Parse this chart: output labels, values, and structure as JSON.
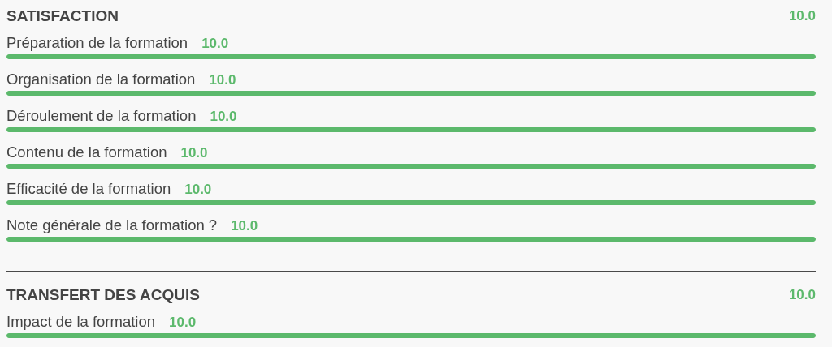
{
  "chart_data": [
    {
      "type": "bar",
      "orientation": "horizontal",
      "title": "SATISFACTION",
      "annotations": [
        "10.0"
      ],
      "categories": [
        "Préparation de la formation",
        "Organisation de la formation",
        "Déroulement de la formation",
        "Contenu de la formation",
        "Efficacité de la formation",
        "Note générale de la formation ?"
      ],
      "values": [
        10,
        10,
        10,
        10,
        10,
        10
      ],
      "value_labels": [
        "10.0",
        "10.0",
        "10.0",
        "10.0",
        "10.0",
        "10.0"
      ],
      "color": "#5cb96c",
      "tick_labels": "y"
    },
    {
      "type": "bar",
      "orientation": "horizontal",
      "title": "TRANSFERT DES ACQUIS",
      "annotations": [
        "10.0"
      ],
      "categories": [
        "Impact de la formation"
      ],
      "values": [
        10
      ],
      "value_labels": [
        "10.0"
      ],
      "color": "#5cb96c",
      "tick_labels": "y"
    }
  ]
}
